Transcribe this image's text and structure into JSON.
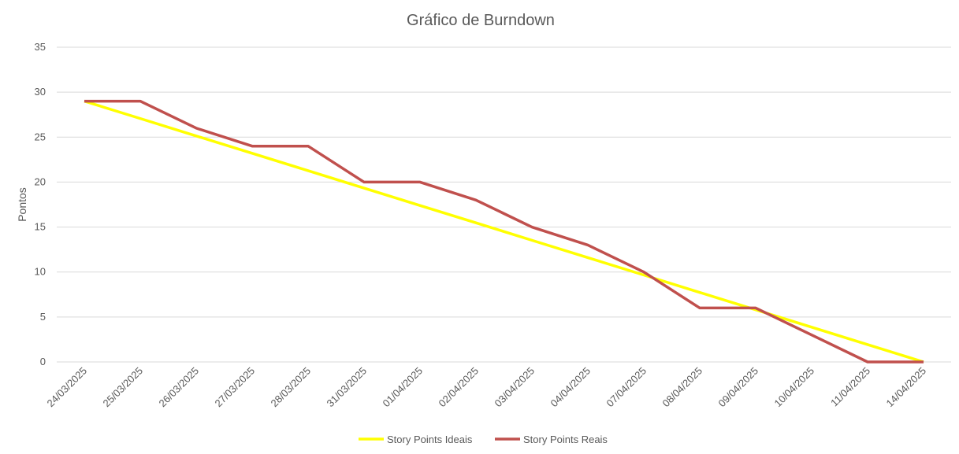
{
  "chart_data": {
    "type": "line",
    "title": "Gráfico de Burndown",
    "xlabel": "",
    "ylabel": "Pontos",
    "ylim": [
      0,
      35
    ],
    "yticks": [
      0,
      5,
      10,
      15,
      20,
      25,
      30,
      35
    ],
    "grid": true,
    "legend": "bottom",
    "categories": [
      "24/03/2025",
      "25/03/2025",
      "26/03/2025",
      "27/03/2025",
      "28/03/2025",
      "31/03/2025",
      "01/04/2025",
      "02/04/2025",
      "03/04/2025",
      "04/04/2025",
      "07/04/2025",
      "08/04/2025",
      "09/04/2025",
      "10/04/2025",
      "11/04/2025",
      "14/04/2025"
    ],
    "series": [
      {
        "name": "Story Points Ideais",
        "color": "#ffff00",
        "values": [
          29,
          27.07,
          25.13,
          23.2,
          21.27,
          19.33,
          17.4,
          15.47,
          13.53,
          11.6,
          9.67,
          7.73,
          5.8,
          3.87,
          1.93,
          0
        ]
      },
      {
        "name": "Story Points Reais",
        "color": "#c0504d",
        "values": [
          29,
          29,
          26,
          24,
          24,
          20,
          20,
          18,
          15,
          13,
          10,
          6,
          6,
          3,
          0,
          0
        ]
      }
    ]
  }
}
